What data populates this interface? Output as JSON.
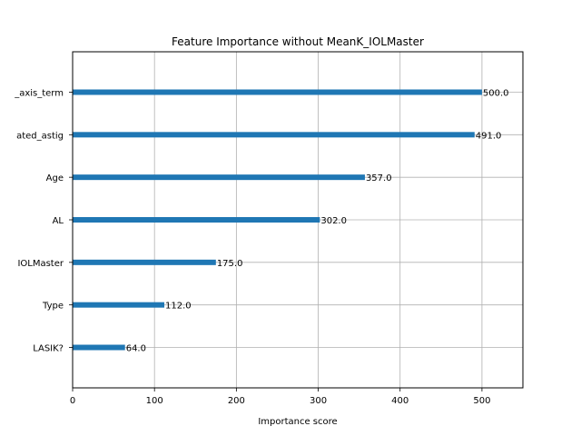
{
  "chart_data": {
    "type": "bar",
    "orientation": "horizontal",
    "title": "Feature Importance without MeanK_IOLMaster",
    "xlabel": "Importance score",
    "ylabel": "",
    "categories": [
      "LASIK?",
      "Type",
      "K_IOLMaster",
      "AL",
      "Age",
      "calculated_astig",
      "steep_axis_term"
    ],
    "displayed_categories": [
      "LASIK?",
      "Type",
      "IOLMaster",
      "AL",
      "Age",
      "ated_astig",
      "_axis_term"
    ],
    "values": [
      64.0,
      112.0,
      175.0,
      302.0,
      357.0,
      491.0,
      500.0
    ],
    "value_labels": [
      "64.0",
      "112.0",
      "175.0",
      "302.0",
      "357.0",
      "491.0",
      "500.0"
    ],
    "xlim": [
      0,
      550
    ],
    "xticks": [
      0,
      100,
      200,
      300,
      400,
      500
    ],
    "grid": true,
    "bar_color": "#1f77b4"
  }
}
